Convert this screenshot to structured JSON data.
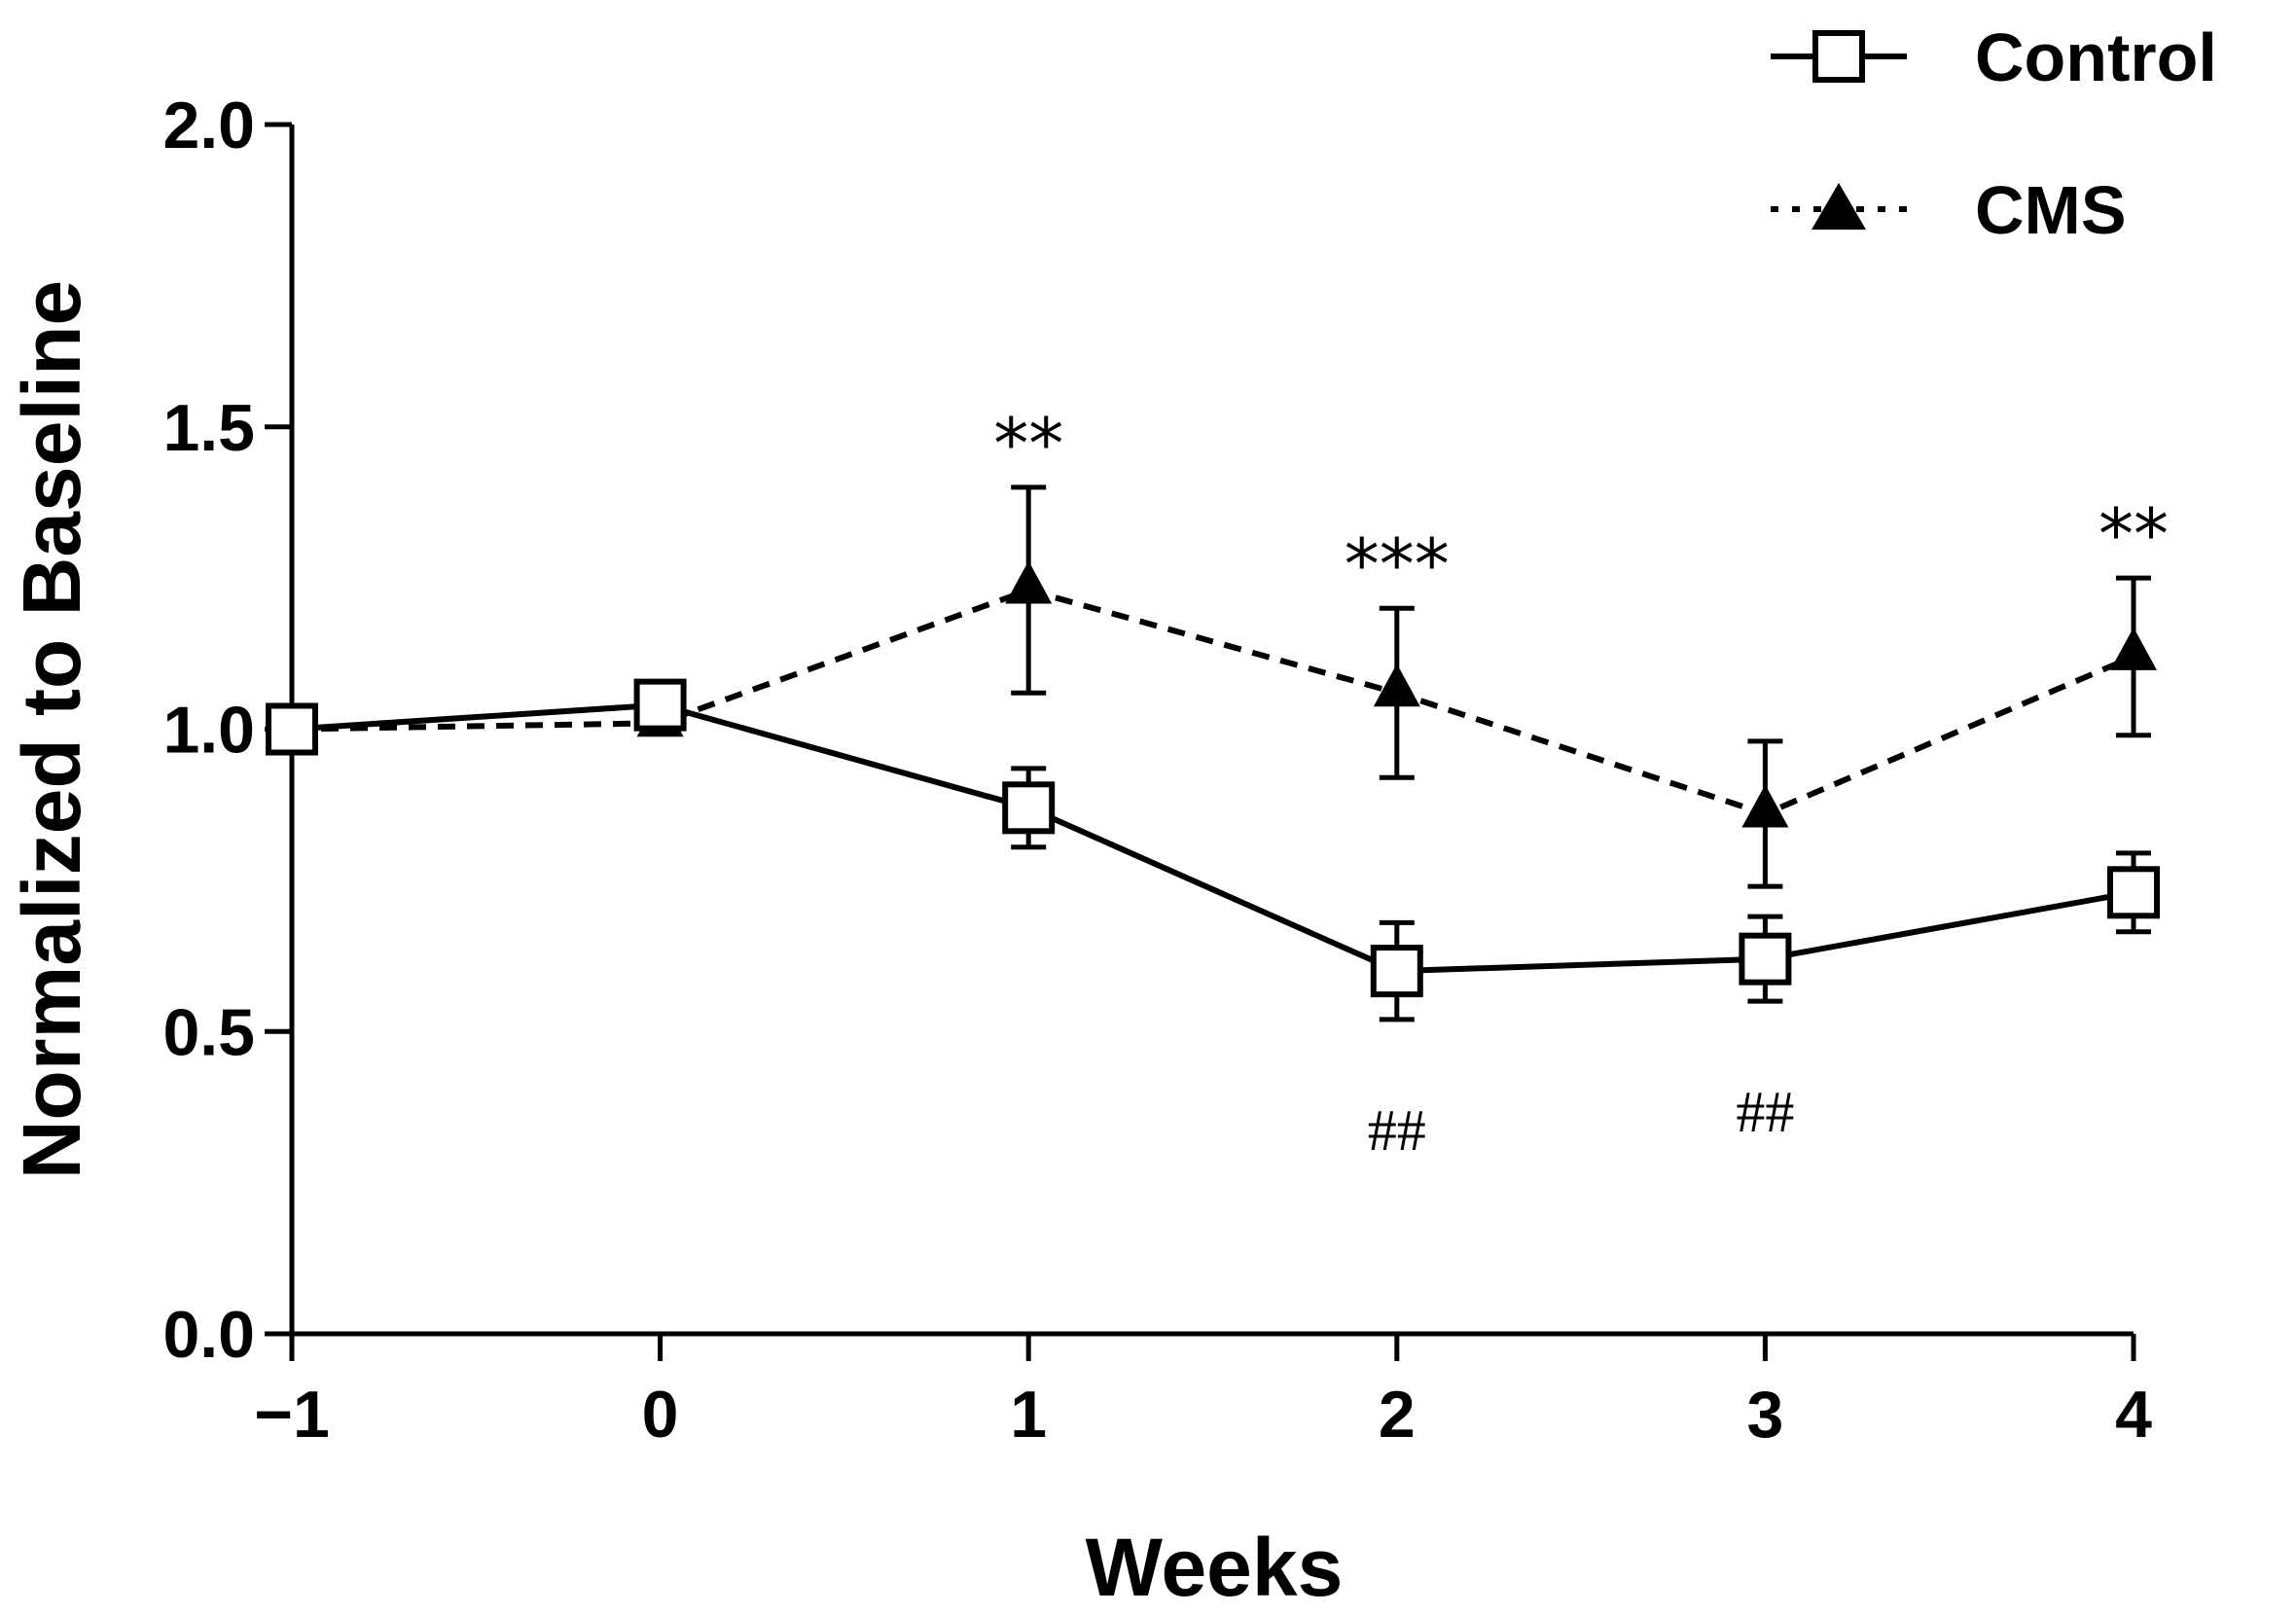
{
  "chart_data": {
    "type": "line",
    "xlabel": "Weeks",
    "ylabel": "Normalized to Baseline",
    "xlim": [
      -1,
      4
    ],
    "ylim": [
      0,
      2.0
    ],
    "x_ticks": [
      -1,
      0,
      1,
      2,
      3,
      4
    ],
    "x_tick_labels": [
      "−1",
      "0",
      "1",
      "2",
      "3",
      "4"
    ],
    "y_ticks": [
      0,
      0.5,
      1.0,
      1.5,
      2.0
    ],
    "y_tick_labels": [
      "0.0",
      "0.5",
      "1.0",
      "1.5",
      "2.0"
    ],
    "legend_position": "top-right",
    "x": [
      -1,
      0,
      1,
      2,
      3,
      4
    ],
    "series": [
      {
        "name": "Control",
        "marker": "open-square",
        "line_style": "solid",
        "values": [
          1.0,
          1.04,
          0.87,
          0.6,
          0.62,
          0.73
        ],
        "errors": [
          0.0,
          0.0,
          0.065,
          0.08,
          0.07,
          0.065
        ]
      },
      {
        "name": "CMS",
        "marker": "filled-triangle",
        "line_style": "dashed",
        "values": [
          1.0,
          1.01,
          1.23,
          1.06,
          0.86,
          1.12
        ],
        "errors": [
          0.0,
          0.0,
          0.17,
          0.14,
          0.12,
          0.13
        ]
      }
    ],
    "annotations": [
      {
        "x": 1,
        "text": "**",
        "placement": "above-CMS"
      },
      {
        "x": 2,
        "text": "***",
        "placement": "above-CMS"
      },
      {
        "x": 4,
        "text": "**",
        "placement": "above-CMS"
      },
      {
        "x": 2,
        "text": "##",
        "placement": "below-Control"
      },
      {
        "x": 3,
        "text": "##",
        "placement": "below-Control"
      }
    ]
  }
}
